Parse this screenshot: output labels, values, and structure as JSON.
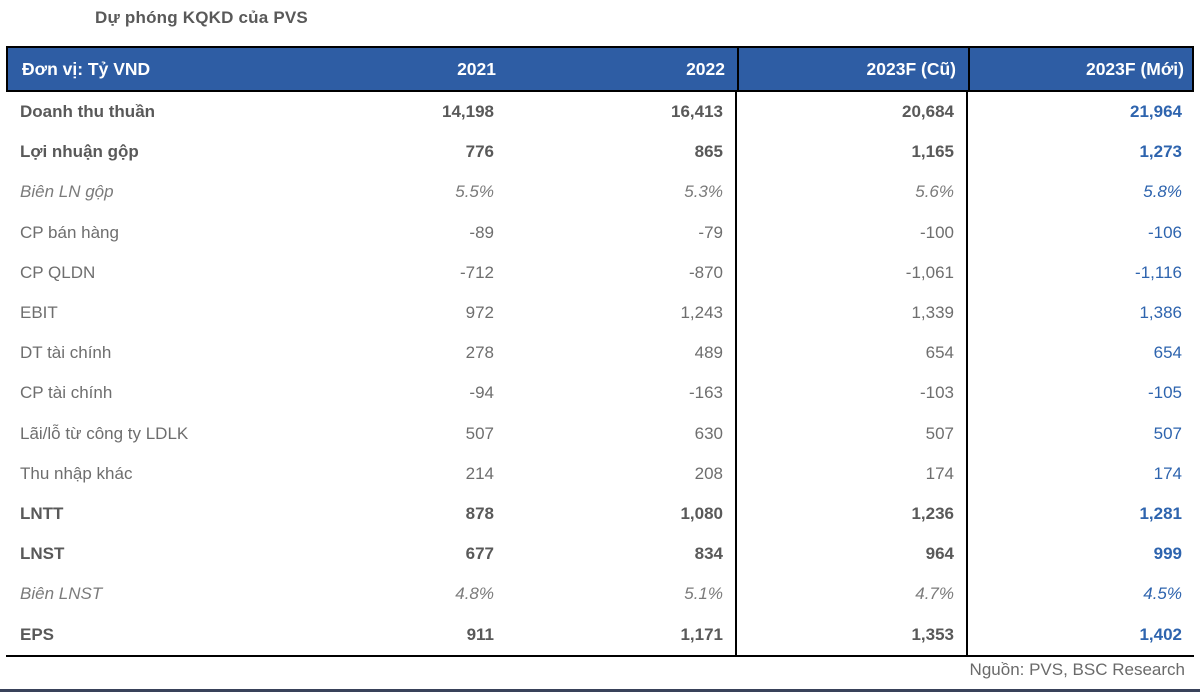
{
  "title": "Dự phóng KQKD của PVS",
  "table": {
    "columns": [
      "Đơn vị: Tỷ VND",
      "2021",
      "2022",
      "2023F (Cũ)",
      "2023F (Mới)"
    ],
    "rows": [
      {
        "label": "Doanh thu thuần",
        "style": "bold",
        "values": [
          "14,198",
          "16,413",
          "20,684",
          "21,964"
        ]
      },
      {
        "label": "Lợi nhuận gộp",
        "style": "bold",
        "values": [
          "776",
          "865",
          "1,165",
          "1,273"
        ]
      },
      {
        "label": "Biên LN gộp",
        "style": "italic",
        "values": [
          "5.5%",
          "5.3%",
          "5.6%",
          "5.8%"
        ]
      },
      {
        "label": "CP bán hàng",
        "style": "regular",
        "values": [
          "-89",
          "-79",
          "-100",
          "-106"
        ]
      },
      {
        "label": "CP QLDN",
        "style": "regular",
        "values": [
          "-712",
          "-870",
          "-1,061",
          "-1,116"
        ]
      },
      {
        "label": "EBIT",
        "style": "regular",
        "values": [
          "972",
          "1,243",
          "1,339",
          "1,386"
        ]
      },
      {
        "label": "DT tài chính",
        "style": "regular",
        "values": [
          "278",
          "489",
          "654",
          "654"
        ]
      },
      {
        "label": "CP tài chính",
        "style": "regular",
        "values": [
          "-94",
          "-163",
          "-103",
          "-105"
        ]
      },
      {
        "label": "Lãi/lỗ từ công ty LDLK",
        "style": "regular",
        "values": [
          "507",
          "630",
          "507",
          "507"
        ]
      },
      {
        "label": "Thu nhập khác",
        "style": "regular",
        "values": [
          "214",
          "208",
          "174",
          "174"
        ]
      },
      {
        "label": "LNTT",
        "style": "bold",
        "values": [
          "878",
          "1,080",
          "1,236",
          "1,281"
        ]
      },
      {
        "label": "LNST",
        "style": "bold",
        "values": [
          "677",
          "834",
          "964",
          "999"
        ]
      },
      {
        "label": "Biên LNST",
        "style": "italic",
        "values": [
          "4.8%",
          "5.1%",
          "4.7%",
          "4.5%"
        ]
      },
      {
        "label": "EPS",
        "style": "bold",
        "values": [
          "911",
          "1,171",
          "1,353",
          "1,402"
        ]
      }
    ]
  },
  "footer": {
    "source": "Nguồn: PVS, BSC Research"
  },
  "colors": {
    "header_bg": "#2E5DA4",
    "header_text": "#FFFFFF",
    "new_column_text": "#2E64AE",
    "body_text": "#6E6E6E",
    "bold_text": "#595959",
    "title_text": "#595959",
    "bottom_rule": "#39425A"
  }
}
